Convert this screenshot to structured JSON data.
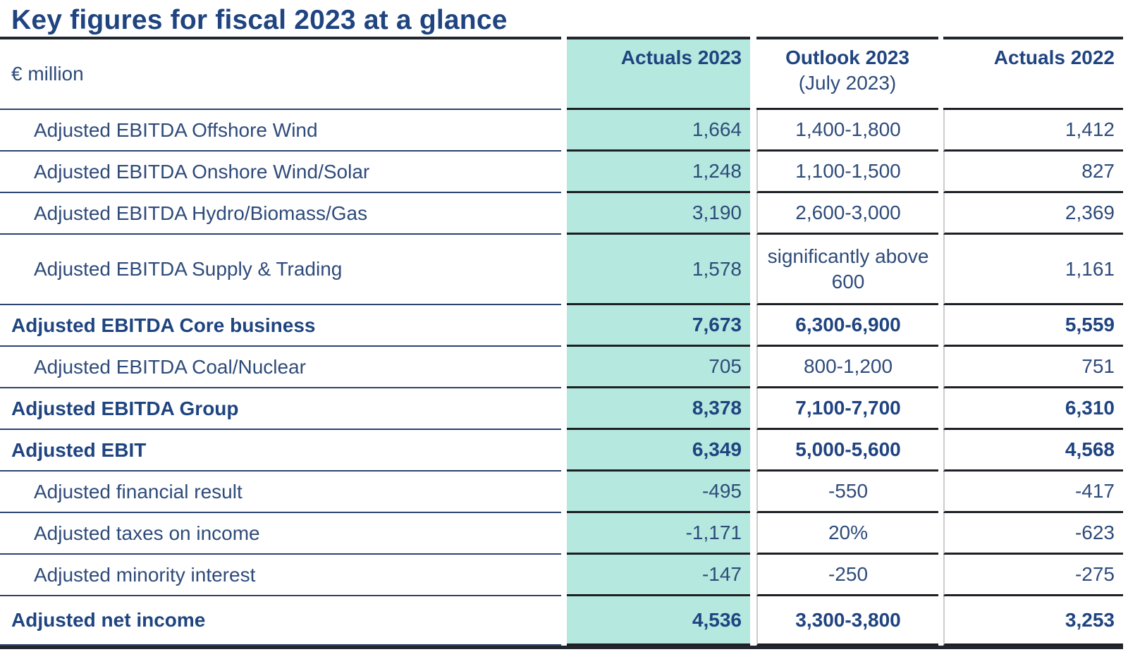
{
  "title": "Key figures for fiscal 2023 at a glance",
  "colors": {
    "highlight_teal": "#b5e8de",
    "navy_heading": "#1f4480",
    "navy_text": "#2e4b7a",
    "label_rule": "#2c4470",
    "value_rule": "#1c1f24",
    "outer_rule": "#22262d",
    "column_divider": "#cbcbcb"
  },
  "chart_data": {
    "type": "table",
    "title": "Key figures for fiscal 2023 at a glance",
    "unit": "€ million",
    "highlighted_column": "Actuals 2023",
    "column_headers": [
      {
        "label": "Actuals 2023",
        "sub": ""
      },
      {
        "label": "Outlook 2023",
        "sub": "(July 2023)"
      },
      {
        "label": "Actuals 2022",
        "sub": ""
      }
    ],
    "rows": [
      {
        "label": "Adjusted EBITDA Offshore Wind",
        "indent": true,
        "bold": false,
        "tall": false,
        "actuals_2023": "1,664",
        "outlook_2023": "1,400-1,800",
        "actuals_2022": "1,412"
      },
      {
        "label": "Adjusted EBITDA Onshore Wind/Solar",
        "indent": true,
        "bold": false,
        "tall": false,
        "actuals_2023": "1,248",
        "outlook_2023": "1,100-1,500",
        "actuals_2022": "827"
      },
      {
        "label": "Adjusted EBITDA Hydro/Biomass/Gas",
        "indent": true,
        "bold": false,
        "tall": false,
        "actuals_2023": "3,190",
        "outlook_2023": "2,600-3,000",
        "actuals_2022": "2,369"
      },
      {
        "label": "Adjusted EBITDA Supply & Trading",
        "indent": true,
        "bold": false,
        "tall": true,
        "actuals_2023": "1,578",
        "outlook_2023": "significantly above 600",
        "actuals_2022": "1,161"
      },
      {
        "label": "Adjusted EBITDA Core business",
        "indent": false,
        "bold": true,
        "tall": false,
        "actuals_2023": "7,673",
        "outlook_2023": "6,300-6,900",
        "actuals_2022": "5,559"
      },
      {
        "label": "Adjusted EBITDA Coal/Nuclear",
        "indent": true,
        "bold": false,
        "tall": false,
        "actuals_2023": "705",
        "outlook_2023": "800-1,200",
        "actuals_2022": "751"
      },
      {
        "label": "Adjusted EBITDA Group",
        "indent": false,
        "bold": true,
        "tall": false,
        "actuals_2023": "8,378",
        "outlook_2023": "7,100-7,700",
        "actuals_2022": "6,310"
      },
      {
        "label": "Adjusted EBIT",
        "indent": false,
        "bold": true,
        "tall": false,
        "actuals_2023": "6,349",
        "outlook_2023": "5,000-5,600",
        "actuals_2022": "4,568"
      },
      {
        "label": "Adjusted financial result",
        "indent": true,
        "bold": false,
        "tall": false,
        "actuals_2023": "-495",
        "outlook_2023": "-550",
        "actuals_2022": "-417"
      },
      {
        "label": "Adjusted taxes on income",
        "indent": true,
        "bold": false,
        "tall": false,
        "actuals_2023": "-1,171",
        "outlook_2023": "20%",
        "actuals_2022": "-623"
      },
      {
        "label": "Adjusted minority interest",
        "indent": true,
        "bold": false,
        "tall": false,
        "actuals_2023": "-147",
        "outlook_2023": "-250",
        "actuals_2022": "-275"
      },
      {
        "label": "Adjusted net income",
        "indent": false,
        "bold": true,
        "tall": false,
        "actuals_2023": "4,536",
        "outlook_2023": "3,300-3,800",
        "actuals_2022": "3,253"
      }
    ]
  }
}
